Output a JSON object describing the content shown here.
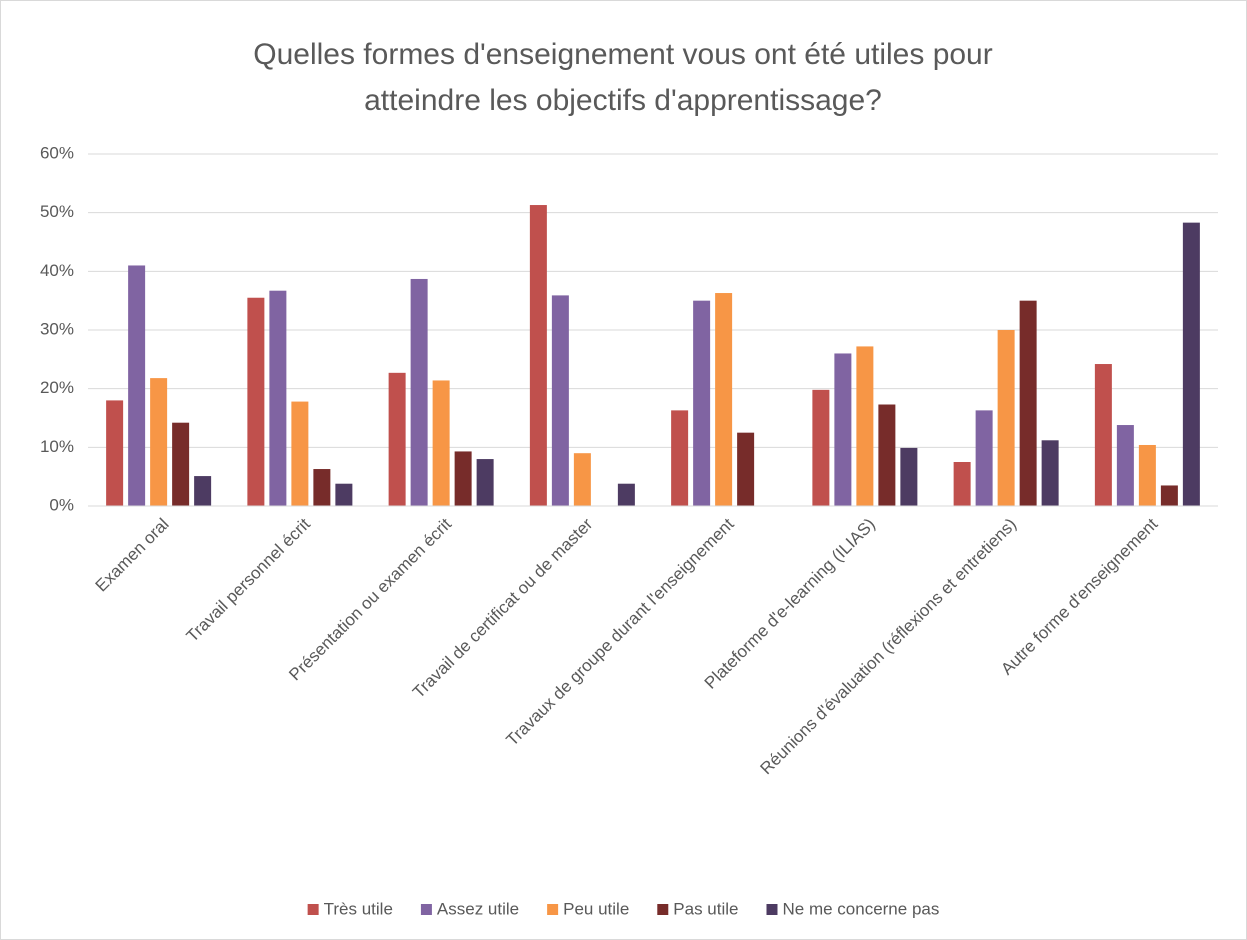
{
  "chart_data": {
    "type": "bar",
    "title": "Quelles formes d'enseignement vous ont été utiles pour atteindre les objectifs d'apprentissage?",
    "categories": [
      "Examen oral",
      "Travail personnel écrit",
      "Présentation ou examen écrit",
      "Travail de certificat ou de master",
      "Travaux de groupe durant l'enseignement",
      "Plateforme d'e-learning (ILIAS)",
      "Réunions d'évaluation (réflexions et entretiens)",
      "Autre forme d'enseignement"
    ],
    "series": [
      {
        "name": "Très utile",
        "color": "#c0504d",
        "values": [
          18,
          35.5,
          22.7,
          51.3,
          16.3,
          19.8,
          7.5,
          24.2
        ]
      },
      {
        "name": "Assez utile",
        "color": "#8064a2",
        "values": [
          41,
          36.7,
          38.7,
          35.9,
          35,
          26,
          16.3,
          13.8
        ]
      },
      {
        "name": "Peu utile",
        "color": "#f79646",
        "values": [
          21.8,
          17.8,
          21.4,
          9,
          36.3,
          27.2,
          30,
          10.4
        ]
      },
      {
        "name": "Pas utile",
        "color": "#772c2a",
        "values": [
          14.2,
          6.3,
          9.3,
          0,
          12.5,
          17.3,
          35,
          3.5
        ]
      },
      {
        "name": "Ne me concerne pas",
        "color": "#4d3b62",
        "values": [
          5.1,
          3.8,
          8,
          3.8,
          0,
          9.9,
          11.2,
          48.3
        ]
      }
    ],
    "ylim": [
      0,
      60
    ],
    "yticks": [
      {
        "value": 0,
        "label": "0%"
      },
      {
        "value": 10,
        "label": "10%"
      },
      {
        "value": 20,
        "label": "20%"
      },
      {
        "value": 30,
        "label": "30%"
      },
      {
        "value": 40,
        "label": "40%"
      },
      {
        "value": 50,
        "label": "50%"
      },
      {
        "value": 60,
        "label": "60%"
      }
    ],
    "grid": true,
    "legend": "bottom"
  }
}
